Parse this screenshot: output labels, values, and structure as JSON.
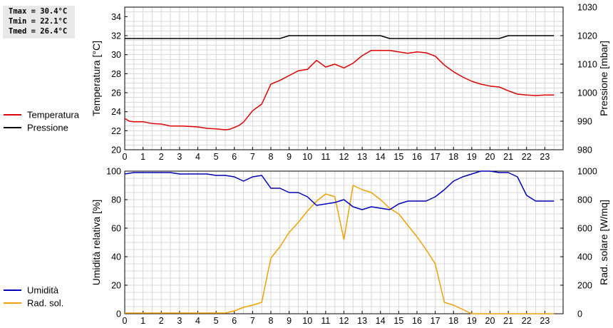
{
  "stats": {
    "tmax": "Tmax = 30.4°C",
    "tmin": "Tmin = 22.1°C",
    "tmed": "Tmed = 26.4°C"
  },
  "chart_data": [
    {
      "type": "line",
      "x_ticks": [
        0,
        1,
        2,
        3,
        4,
        5,
        6,
        7,
        8,
        9,
        10,
        11,
        12,
        13,
        14,
        15,
        16,
        17,
        18,
        19,
        20,
        21,
        22,
        23
      ],
      "xlim": [
        0,
        24
      ],
      "grid": true,
      "legend_placement": "left",
      "y_left": {
        "label": "Temperatura [°C]",
        "range": [
          20,
          35
        ],
        "ticks": [
          20,
          22,
          24,
          26,
          28,
          30,
          32,
          34
        ]
      },
      "y_right": {
        "label": "Pressione [mbar]",
        "range": [
          980,
          1030
        ],
        "ticks": [
          980,
          990,
          1000,
          1010,
          1020,
          1030
        ]
      },
      "series": [
        {
          "name": "Temperatura",
          "axis": "left",
          "color": "#dd0000",
          "x": [
            0,
            0.25,
            0.5,
            1,
            1.5,
            2,
            2.5,
            3,
            3.5,
            4,
            4.5,
            5,
            5.5,
            5.75,
            6,
            6.25,
            6.5,
            7,
            7.5,
            8,
            8.25,
            8.5,
            9,
            9.5,
            10,
            10.5,
            11,
            11.5,
            12,
            12.5,
            13,
            13.5,
            14,
            14.5,
            15,
            15.5,
            16,
            16.5,
            17,
            17.5,
            18,
            18.5,
            19,
            19.5,
            20,
            20.5,
            21,
            21.5,
            22,
            22.5,
            23,
            23.5
          ],
          "y": [
            23.3,
            23.0,
            22.95,
            22.95,
            22.75,
            22.7,
            22.5,
            22.5,
            22.45,
            22.4,
            22.25,
            22.2,
            22.1,
            22.15,
            22.35,
            22.55,
            22.9,
            24.1,
            24.8,
            26.9,
            27.1,
            27.3,
            27.8,
            28.3,
            28.45,
            29.4,
            28.7,
            29.0,
            28.6,
            29.1,
            29.9,
            30.45,
            30.45,
            30.45,
            30.3,
            30.15,
            30.3,
            30.2,
            29.85,
            28.9,
            28.2,
            27.65,
            27.2,
            26.9,
            26.7,
            26.6,
            26.2,
            25.85,
            25.75,
            25.7,
            25.75,
            25.75
          ]
        },
        {
          "name": "Pressione",
          "axis": "right",
          "color": "#000000",
          "x": [
            0,
            8.5,
            9,
            14,
            14.5,
            20.5,
            21,
            23.5
          ],
          "y": [
            1019.0,
            1019.0,
            1020.0,
            1020.0,
            1019.0,
            1019.0,
            1020.0,
            1020.0
          ]
        }
      ]
    },
    {
      "type": "line",
      "x_ticks": [
        0,
        1,
        2,
        3,
        4,
        5,
        6,
        7,
        8,
        9,
        10,
        11,
        12,
        13,
        14,
        15,
        16,
        17,
        18,
        19,
        20,
        21,
        22,
        23
      ],
      "xlim": [
        0,
        24
      ],
      "grid": true,
      "legend_placement": "left",
      "y_left": {
        "label": "Umidità relativa [%]",
        "range": [
          0,
          100
        ],
        "ticks": [
          0,
          20,
          40,
          60,
          80,
          100
        ]
      },
      "y_right": {
        "label": "Rad. solare [W/mq]",
        "range": [
          0,
          1000
        ],
        "ticks": [
          0,
          200,
          400,
          600,
          800,
          1000
        ]
      },
      "series": [
        {
          "name": "Umidità",
          "axis": "left",
          "color": "#0000bb",
          "x": [
            0,
            0.5,
            1,
            2,
            2.5,
            3,
            4,
            4.5,
            5,
            5.5,
            6,
            6.5,
            7,
            7.5,
            8,
            8.5,
            9,
            9.5,
            10,
            10.5,
            11,
            11.5,
            12,
            12.5,
            13,
            13.5,
            14,
            14.5,
            15,
            15.5,
            16,
            16.5,
            17,
            17.5,
            18,
            18.5,
            19,
            19.5,
            20,
            20.5,
            21,
            21.5,
            22,
            22.5,
            23,
            23.5
          ],
          "y": [
            98,
            99,
            99,
            99,
            99,
            98,
            98,
            98,
            97,
            97,
            96,
            93,
            96,
            97,
            88,
            88,
            85,
            85,
            82,
            76,
            77,
            78,
            80,
            75,
            73,
            75,
            74,
            73,
            77,
            79,
            79,
            79,
            82,
            87,
            93,
            96,
            98,
            100,
            100,
            99,
            99,
            96,
            83,
            79,
            79,
            79
          ]
        },
        {
          "name": "Rad. sol.",
          "axis": "right",
          "color": "#f0a000",
          "x": [
            0,
            0.5,
            1,
            1.5,
            2,
            2.5,
            3,
            3.5,
            4,
            4.5,
            5,
            5.5,
            6,
            6.5,
            7,
            7.5,
            8,
            8.5,
            9,
            9.5,
            10,
            10.5,
            11,
            11.5,
            12,
            12.5,
            13,
            13.5,
            14,
            14.5,
            15,
            15.5,
            16,
            16.5,
            17,
            17.5,
            18,
            18.5,
            19,
            19.5,
            20,
            20.5,
            21,
            21.5,
            22,
            22.5,
            23,
            23.5
          ],
          "y": [
            5,
            5,
            5,
            5,
            5,
            5,
            5,
            5,
            5,
            5,
            5,
            5,
            20,
            45,
            60,
            80,
            390,
            470,
            570,
            640,
            720,
            790,
            840,
            820,
            520,
            900,
            870,
            850,
            800,
            740,
            700,
            620,
            540,
            450,
            350,
            80,
            60,
            30,
            0,
            0,
            0,
            0,
            0,
            0,
            0,
            0,
            0,
            0
          ]
        }
      ]
    }
  ],
  "legends": {
    "top": [
      {
        "label": "Temperatura",
        "color": "#dd0000"
      },
      {
        "label": "Pressione",
        "color": "#000000"
      }
    ],
    "bottom": [
      {
        "label": "Umidità",
        "color": "#0000bb"
      },
      {
        "label": "Rad. sol.",
        "color": "#f0a000"
      }
    ]
  }
}
